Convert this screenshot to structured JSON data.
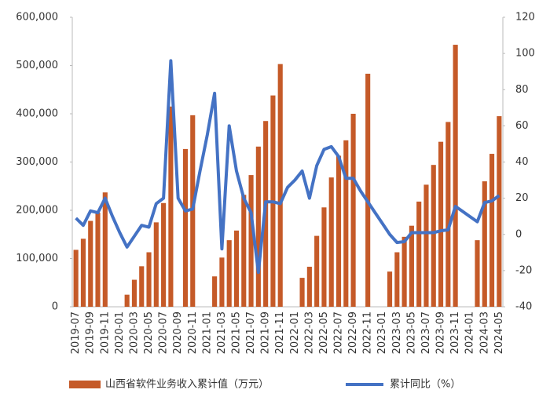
{
  "chart_data": {
    "type": "bar-line",
    "categories": [
      "2019-07",
      null,
      "2019-09",
      null,
      "2019-11",
      null,
      "2020-01",
      null,
      "2020-03",
      null,
      "2020-05",
      null,
      "2020-07",
      null,
      "2020-09",
      null,
      "2020-11",
      null,
      "2021-01",
      null,
      "2021-03",
      null,
      "2021-05",
      null,
      "2021-07",
      null,
      "2021-09",
      null,
      "2021-11",
      null,
      "2022-01",
      null,
      "2022-03",
      null,
      "2022-05",
      null,
      "2022-07",
      null,
      "2022-09",
      null,
      "2022-11",
      null,
      "2023-01",
      null,
      "2023-03",
      null,
      "2023-05",
      null,
      "2023-07",
      null,
      "2023-09",
      null,
      "2023-11",
      null,
      "2024-01",
      null,
      "2024-03",
      null,
      "2024-05"
    ],
    "series": [
      {
        "name": "山西省软件业务收入累计值（万元）",
        "color": "#c55a28",
        "kind": "bar",
        "values": [
          118000,
          141000,
          178000,
          195000,
          237000,
          null,
          null,
          25000,
          56000,
          84000,
          113000,
          175000,
          215000,
          415000,
          null,
          327000,
          397000,
          null,
          null,
          63000,
          102000,
          138000,
          158000,
          232000,
          273000,
          332000,
          385000,
          438000,
          503000,
          null,
          null,
          60000,
          83000,
          147000,
          206000,
          268000,
          313000,
          345000,
          400000,
          null,
          483000,
          null,
          null,
          73000,
          113000,
          145000,
          168000,
          218000,
          253000,
          294000,
          342000,
          383000,
          543000,
          null,
          null,
          138000,
          260000,
          317000,
          395000
        ]
      },
      {
        "name": "累计同比（%）",
        "color": "#4472c4",
        "kind": "line",
        "axis": "y2",
        "values": [
          9,
          5,
          13,
          12,
          20,
          10,
          1,
          -7,
          -1,
          5,
          4,
          17,
          20,
          96,
          20,
          13,
          14,
          35,
          55,
          78,
          -8,
          60,
          35,
          20,
          12,
          -21,
          18,
          18,
          17,
          26,
          30,
          35,
          20,
          38,
          47,
          48.5,
          43,
          31,
          31,
          24,
          18,
          12,
          6,
          0,
          -4.5,
          -4,
          1,
          1,
          1,
          1,
          2,
          2.5,
          15.5,
          12.7,
          9.8,
          7,
          17.6,
          18.5,
          21.5
        ]
      }
    ],
    "ylim": [
      0,
      600000
    ],
    "yticks": [
      0,
      {
        "value": 100000,
        "label": "100,000"
      },
      {
        "value": 200000,
        "label": "200,000"
      },
      {
        "value": 300000,
        "label": "300,000"
      },
      {
        "value": 400000,
        "label": "400,000"
      },
      {
        "value": 500000,
        "label": "500,000"
      },
      {
        "value": 600000,
        "label": "600,000"
      }
    ],
    "y2lim": [
      -40,
      120
    ],
    "y2ticks": [
      -40,
      -20,
      0,
      20,
      40,
      60,
      80,
      100,
      120
    ],
    "legend": "bottom"
  }
}
